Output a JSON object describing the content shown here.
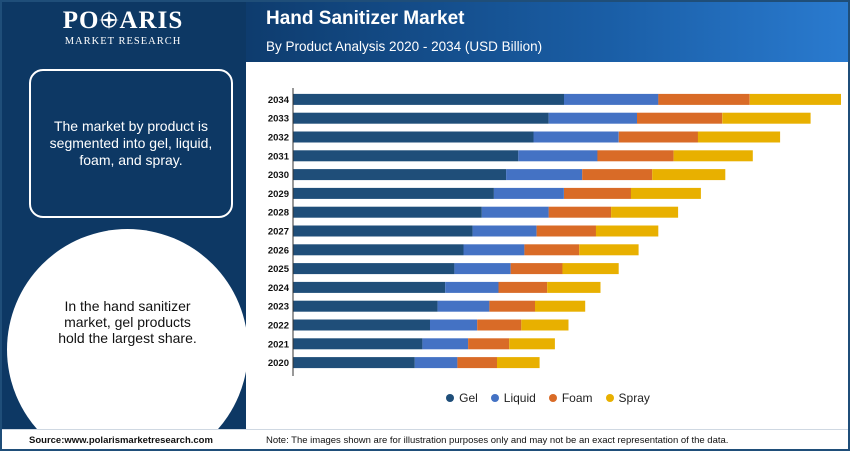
{
  "brand": {
    "name": "POLARIS",
    "tagline": "MARKET RESEARCH"
  },
  "header": {
    "title": "Hand Sanitizer Market",
    "subtitle": "By Product Analysis 2020 - 2034 (USD Billion)"
  },
  "left_panel": {
    "box_text": "The market by product is segmented into gel, liquid, foam, and spray.",
    "circle_text": "In the hand sanitizer market, gel products hold the largest share."
  },
  "footer": {
    "source": "Source:www.polarismarketresearch.com",
    "note": "Note: The images shown are for illustration purposes only and may not be an exact representation of the data."
  },
  "colors": {
    "navy": "#0d3864",
    "gel": "#1f4e79",
    "liquid": "#4472c4",
    "foam": "#d96b27",
    "spray": "#e8b000"
  },
  "chart_data": {
    "type": "bar",
    "orientation": "horizontal",
    "stacked": true,
    "categories": [
      "2034",
      "2033",
      "2032",
      "2031",
      "2030",
      "2029",
      "2028",
      "2027",
      "2026",
      "2025",
      "2024",
      "2023",
      "2022",
      "2021",
      "2020"
    ],
    "series": [
      {
        "name": "Gel",
        "color": "#1f4e79",
        "values": [
          8.9,
          8.4,
          7.9,
          7.4,
          7.0,
          6.6,
          6.2,
          5.9,
          5.6,
          5.3,
          5.0,
          4.75,
          4.5,
          4.25,
          4.0
        ]
      },
      {
        "name": "Liquid",
        "color": "#4472c4",
        "values": [
          3.1,
          2.9,
          2.8,
          2.6,
          2.5,
          2.3,
          2.2,
          2.1,
          2.0,
          1.85,
          1.75,
          1.7,
          1.55,
          1.5,
          1.4
        ]
      },
      {
        "name": "Foam",
        "color": "#d96b27",
        "values": [
          3.0,
          2.8,
          2.6,
          2.5,
          2.3,
          2.2,
          2.05,
          1.95,
          1.8,
          1.7,
          1.6,
          1.5,
          1.45,
          1.35,
          1.3
        ]
      },
      {
        "name": "Spray",
        "color": "#e8b000",
        "values": [
          3.0,
          2.9,
          2.7,
          2.6,
          2.4,
          2.3,
          2.2,
          2.05,
          1.95,
          1.85,
          1.75,
          1.65,
          1.55,
          1.5,
          1.4
        ]
      }
    ],
    "xlim": [
      0,
      18
    ],
    "legend": "bottom",
    "grid": false
  }
}
